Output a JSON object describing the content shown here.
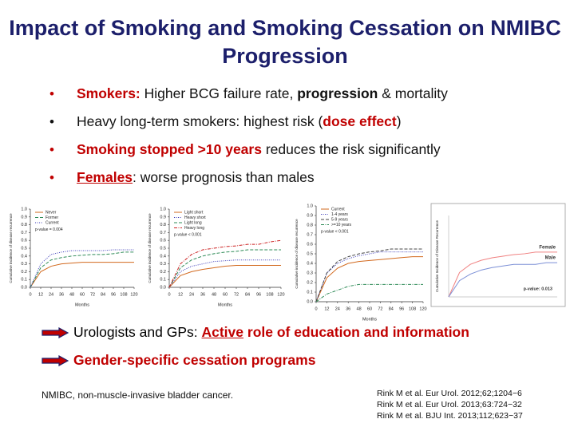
{
  "title": "Impact of Smoking and Smoking Cessation on NMIBC Progression",
  "bullets": [
    {
      "bullet_color": "#c00000",
      "segments": [
        {
          "text": "Smokers:",
          "style": "red-bold"
        },
        {
          "text": " Higher BCG failure rate, ",
          "style": "normal"
        },
        {
          "text": "progression",
          "style": "bold"
        },
        {
          "text": " & mortality",
          "style": "normal"
        }
      ]
    },
    {
      "bullet_color": "#111111",
      "segments": [
        {
          "text": "Heavy long-term smokers: highest risk (",
          "style": "normal"
        },
        {
          "text": "dose effect",
          "style": "red-bold"
        },
        {
          "text": ")",
          "style": "normal"
        }
      ]
    },
    {
      "bullet_color": "#c00000",
      "segments": [
        {
          "text": "Smoking stopped >10 years",
          "style": "red-bold"
        },
        {
          "text": " reduces the risk significantly",
          "style": "normal"
        }
      ]
    },
    {
      "bullet_color": "#c00000",
      "segments": [
        {
          "text": "Females",
          "style": "red-bold-underline"
        },
        {
          "text": ": worse prognosis than males",
          "style": "normal"
        }
      ]
    }
  ],
  "arrows": [
    {
      "segments": [
        {
          "text": "Urologists and GPs: ",
          "style": "normal"
        },
        {
          "text": "Active",
          "style": "red-bold-underline"
        },
        {
          "text": " role of education and information",
          "style": "red-bold"
        }
      ]
    },
    {
      "segments": [
        {
          "text": "Gender-specific cessation programs",
          "style": "red-bold"
        }
      ]
    }
  ],
  "footnote": "NMIBC, non-muscle-invasive bladder cancer.",
  "references": [
    "Rink M et al. Eur Urol. 2012;62;1204−6",
    "Rink M et al. Eur Urol. 2013;63:724−32",
    "Rink M et al. BJU Int. 2013;112;623−37"
  ],
  "chart_data": [
    {
      "type": "line",
      "y_label": "Cumulative incidence of disease recurrence",
      "x_label": "Months",
      "annotation": "p-value = 0.004",
      "legend": "upper-left",
      "x": [
        0,
        12,
        24,
        36,
        48,
        60,
        72,
        84,
        96,
        108,
        120
      ],
      "xlim": [
        0,
        120
      ],
      "xticks": [
        0,
        12,
        24,
        36,
        48,
        60,
        72,
        84,
        96,
        108,
        120
      ],
      "ylim": [
        0,
        1
      ],
      "yticks": [
        {
          "value": 0,
          "label": "0.0"
        },
        {
          "value": 0.1,
          "label": "0.1"
        },
        {
          "value": 0.2,
          "label": "0.2"
        },
        {
          "value": 0.3,
          "label": "0.3"
        },
        {
          "value": 0.4,
          "label": "0.4"
        },
        {
          "value": 0.5,
          "label": "0.5"
        },
        {
          "value": 0.6,
          "label": "0.6"
        },
        {
          "value": 0.7,
          "label": "0.7"
        },
        {
          "value": 0.8,
          "label": "0.8"
        },
        {
          "value": 0.9,
          "label": "0.9"
        },
        {
          "value": 1,
          "label": "1.0"
        }
      ],
      "series": [
        {
          "name": "Never",
          "color": "#d2691e",
          "dash": "solid",
          "values": [
            0,
            0.2,
            0.27,
            0.3,
            0.31,
            0.32,
            0.32,
            0.32,
            0.32,
            0.32,
            0.32
          ]
        },
        {
          "name": "Former",
          "color": "#2e8b57",
          "dash": "dashed",
          "values": [
            0,
            0.25,
            0.35,
            0.38,
            0.4,
            0.41,
            0.42,
            0.42,
            0.43,
            0.45,
            0.45
          ]
        },
        {
          "name": "Current",
          "color": "#3a3ab8",
          "dash": "dotted",
          "values": [
            0,
            0.3,
            0.42,
            0.45,
            0.47,
            0.47,
            0.47,
            0.47,
            0.48,
            0.48,
            0.48
          ]
        }
      ]
    },
    {
      "type": "line",
      "y_label": "Cumulative incidence of disease recurrence",
      "x_label": "Months",
      "annotation": "p-value < 0.001",
      "legend": "upper-left",
      "x": [
        0,
        12,
        24,
        36,
        48,
        60,
        72,
        84,
        96,
        108,
        120
      ],
      "xlim": [
        0,
        120
      ],
      "xticks": [
        0,
        12,
        24,
        36,
        48,
        60,
        72,
        84,
        96,
        108,
        120
      ],
      "ylim": [
        0,
        1
      ],
      "yticks": [
        {
          "value": 0,
          "label": "0.0"
        },
        {
          "value": 0.1,
          "label": "0.1"
        },
        {
          "value": 0.2,
          "label": "0.2"
        },
        {
          "value": 0.3,
          "label": "0.3"
        },
        {
          "value": 0.4,
          "label": "0.4"
        },
        {
          "value": 0.5,
          "label": "0.5"
        },
        {
          "value": 0.6,
          "label": "0.6"
        },
        {
          "value": 0.7,
          "label": "0.7"
        },
        {
          "value": 0.8,
          "label": "0.8"
        },
        {
          "value": 0.9,
          "label": "0.9"
        },
        {
          "value": 1,
          "label": "1.0"
        }
      ],
      "series": [
        {
          "name": "Light short",
          "color": "#d2691e",
          "dash": "solid",
          "values": [
            0,
            0.15,
            0.2,
            0.23,
            0.25,
            0.27,
            0.28,
            0.28,
            0.28,
            0.28,
            0.28
          ]
        },
        {
          "name": "Heavy short",
          "color": "#3a3ab8",
          "dash": "dotted",
          "values": [
            0,
            0.2,
            0.27,
            0.3,
            0.33,
            0.34,
            0.35,
            0.35,
            0.35,
            0.35,
            0.35
          ]
        },
        {
          "name": "Light long",
          "color": "#2e8b57",
          "dash": "dashed",
          "values": [
            0,
            0.25,
            0.35,
            0.4,
            0.43,
            0.45,
            0.46,
            0.48,
            0.48,
            0.48,
            0.48
          ]
        },
        {
          "name": "Heavy long",
          "color": "#cc2222",
          "dash": "dashdot",
          "values": [
            0,
            0.3,
            0.42,
            0.48,
            0.5,
            0.52,
            0.53,
            0.55,
            0.55,
            0.58,
            0.6
          ]
        }
      ]
    },
    {
      "type": "line",
      "y_label": "Cumulative incidence of disease recurrence",
      "x_label": "Months",
      "annotation": "p-value < 0.001",
      "legend": "upper-left",
      "x": [
        0,
        12,
        24,
        36,
        48,
        60,
        72,
        84,
        96,
        108,
        120
      ],
      "xlim": [
        0,
        120
      ],
      "xticks": [
        0,
        12,
        24,
        36,
        48,
        60,
        72,
        84,
        96,
        108,
        120
      ],
      "ylim": [
        0,
        1
      ],
      "yticks": [
        {
          "value": 0,
          "label": "0.0"
        },
        {
          "value": 0.1,
          "label": "0.1"
        },
        {
          "value": 0.2,
          "label": "0.2"
        },
        {
          "value": 0.3,
          "label": "0.3"
        },
        {
          "value": 0.4,
          "label": "0.4"
        },
        {
          "value": 0.5,
          "label": "0.5"
        },
        {
          "value": 0.6,
          "label": "0.6"
        },
        {
          "value": 0.7,
          "label": "0.7"
        },
        {
          "value": 0.8,
          "label": "0.8"
        },
        {
          "value": 0.9,
          "label": "0.9"
        },
        {
          "value": 1,
          "label": "1.0"
        }
      ],
      "series": [
        {
          "name": "Current",
          "color": "#d2691e",
          "dash": "solid",
          "values": [
            0,
            0.25,
            0.35,
            0.4,
            0.42,
            0.43,
            0.44,
            0.45,
            0.46,
            0.47,
            0.47
          ]
        },
        {
          "name": "1-4 years",
          "color": "#3a3ab8",
          "dash": "dotted",
          "values": [
            0,
            0.3,
            0.4,
            0.45,
            0.48,
            0.5,
            0.52,
            0.52,
            0.52,
            0.52,
            0.52
          ]
        },
        {
          "name": "5-9 years",
          "color": "#444444",
          "dash": "dashed",
          "values": [
            0,
            0.3,
            0.42,
            0.47,
            0.5,
            0.52,
            0.53,
            0.55,
            0.55,
            0.55,
            0.55
          ]
        },
        {
          "name": ">=10 years",
          "color": "#2e8b57",
          "dash": "dashdot",
          "values": [
            0,
            0.08,
            0.12,
            0.16,
            0.18,
            0.18,
            0.18,
            0.18,
            0.18,
            0.18,
            0.18
          ]
        }
      ]
    },
    {
      "type": "line",
      "y_label": "Cumulative Incidence of Disease Recurrence",
      "annotation": "p-value: 0.013",
      "legend": "line-end",
      "frame": true,
      "x": [
        0,
        12,
        24,
        36,
        48,
        60,
        72,
        84,
        96,
        108,
        120
      ],
      "xlim": [
        0,
        120
      ],
      "ylim": [
        0,
        1
      ],
      "series": [
        {
          "name": "Female",
          "color": "#f08080",
          "dash": "solid",
          "values": [
            0,
            0.3,
            0.4,
            0.45,
            0.48,
            0.5,
            0.52,
            0.53,
            0.55,
            0.55,
            0.55
          ]
        },
        {
          "name": "Male",
          "color": "#7b8fd6",
          "dash": "solid",
          "values": [
            0,
            0.2,
            0.28,
            0.33,
            0.36,
            0.38,
            0.4,
            0.4,
            0.4,
            0.42,
            0.42
          ]
        }
      ]
    }
  ]
}
